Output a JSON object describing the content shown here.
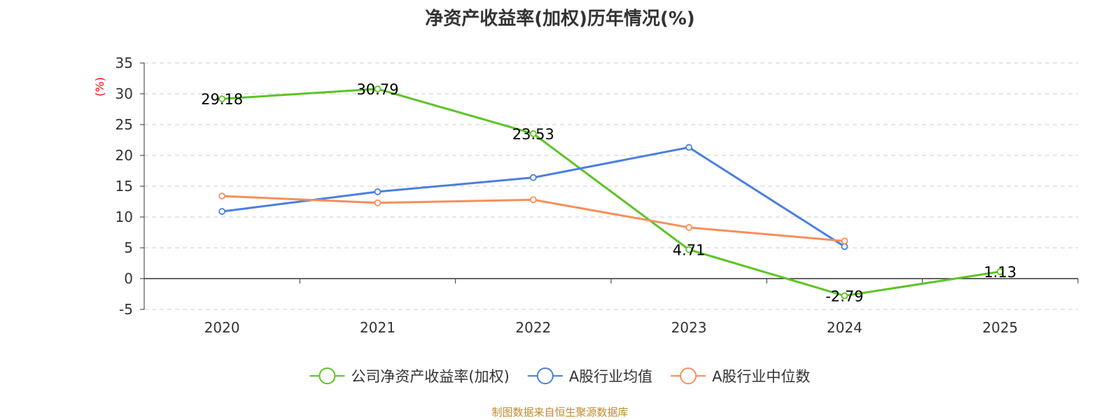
{
  "chart_data": {
    "type": "line",
    "title": "净资产收益率(加权)历年情况(%)",
    "ylabel": "(%)",
    "xlabel": "",
    "categories": [
      "2020",
      "2021",
      "2022",
      "2023",
      "2024",
      "2025"
    ],
    "ylim": [
      -5,
      35
    ],
    "yticks": [
      -5,
      0,
      5,
      10,
      15,
      20,
      25,
      30,
      35
    ],
    "grid": true,
    "legend_position": "bottom",
    "series": [
      {
        "name": "公司净资产收益率(加权)",
        "color": "#5cc424",
        "values": [
          29.18,
          30.79,
          23.53,
          4.71,
          -2.79,
          1.13
        ],
        "labels": [
          "29.18",
          "30.79",
          "23.53",
          "4.71",
          "-2.79",
          "1.13"
        ],
        "show_labels": true
      },
      {
        "name": "A股行业均值",
        "color": "#4a7fdf",
        "values": [
          10.9,
          14.1,
          16.4,
          21.3,
          5.2,
          null
        ],
        "show_labels": false
      },
      {
        "name": "A股行业中位数",
        "color": "#f58f5b",
        "values": [
          13.4,
          12.3,
          12.8,
          8.3,
          6.1,
          null
        ],
        "show_labels": false
      }
    ],
    "source": "制图数据来自恒生聚源数据库"
  },
  "colors": {
    "axis": "#333333",
    "grid": "#cccccc",
    "unit": "#ff0000",
    "source": "#c08a2a"
  }
}
